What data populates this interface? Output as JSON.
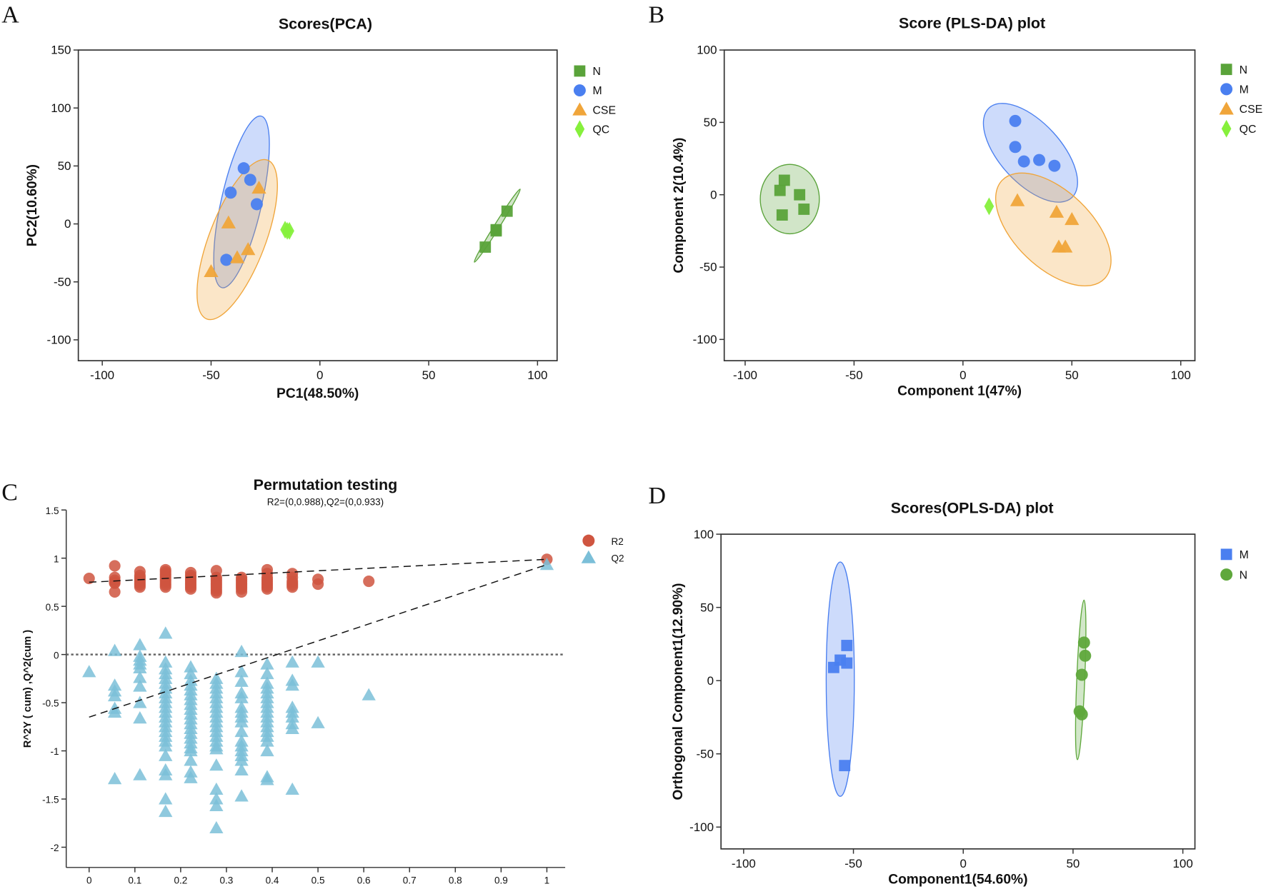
{
  "panel_letters": [
    "A",
    "B",
    "C",
    "D"
  ],
  "chart_data": [
    {
      "type": "scatter",
      "title": "Scores(PCA)",
      "xlabel": "PC1(48.50%)",
      "ylabel": "PC2(10.60%)",
      "xlim": [
        -111,
        109
      ],
      "ylim": [
        -118,
        150
      ],
      "xticks": [
        -100,
        -50,
        0,
        50,
        100
      ],
      "yticks": [
        -100,
        -50,
        0,
        50,
        100,
        150
      ],
      "legend": "right",
      "series": [
        {
          "name": "N",
          "marker": "square",
          "color": "#5aa33a",
          "points": [
            [
              76,
              -20
            ],
            [
              81,
              -5
            ],
            [
              86,
              11
            ],
            [
              81,
              -6
            ]
          ],
          "ellipse": {
            "center": [
              81.5,
              -1.5
            ],
            "axis_end": [
              92,
              30
            ],
            "minor_ratio": 0.06
          }
        },
        {
          "name": "M",
          "marker": "circle",
          "color": "#4a7ff0",
          "points": [
            [
              -35,
              48
            ],
            [
              -32,
              38
            ],
            [
              -41,
              27
            ],
            [
              -29,
              17
            ],
            [
              -43,
              -31
            ]
          ],
          "ellipse": {
            "center": [
              -36,
              19
            ],
            "axis_end": [
              -27,
              93
            ],
            "minor_ratio": 0.23
          }
        },
        {
          "name": "CSE",
          "marker": "triangle",
          "color": "#f0a53a",
          "points": [
            [
              -28,
              31
            ],
            [
              -42,
              1
            ],
            [
              -33,
              -22
            ],
            [
              -38,
              -29
            ],
            [
              -50,
              -41
            ]
          ],
          "ellipse": {
            "center": [
              -38,
              -13.5
            ],
            "axis_end": [
              -24,
              55
            ],
            "minor_ratio": 0.33
          }
        },
        {
          "name": "QC",
          "marker": "diamond",
          "color": "#86f03c",
          "points": [
            [
              -16,
              -5
            ],
            [
              -15,
              -6
            ],
            [
              -14,
              -6
            ]
          ]
        }
      ]
    },
    {
      "type": "scatter",
      "title": "Score (PLS-DA) plot",
      "xlabel": "Component 1(47%)",
      "ylabel": "Component 2(10.4%)",
      "xlim": [
        -109.6,
        106.5
      ],
      "ylim": [
        -114.7,
        100
      ],
      "xticks": [
        -100,
        -50,
        0,
        50,
        100
      ],
      "yticks": [
        -100,
        -50,
        0,
        50,
        100
      ],
      "legend": "right",
      "series": [
        {
          "name": "N",
          "marker": "square",
          "color": "#5aa33a",
          "points": [
            [
              -84,
              3
            ],
            [
              -82,
              10
            ],
            [
              -83,
              -14
            ],
            [
              -75,
              0
            ],
            [
              -73,
              -10
            ]
          ],
          "ellipse": {
            "center": [
              -79.5,
              -3
            ],
            "axis_end": [
              -79.5,
              21
            ],
            "minor_ratio": 0.85
          }
        },
        {
          "name": "M",
          "marker": "circle",
          "color": "#4a7ff0",
          "points": [
            [
              24,
              51
            ],
            [
              24,
              33
            ],
            [
              28,
              23
            ],
            [
              35,
              24
            ],
            [
              42,
              20
            ]
          ],
          "ellipse": {
            "center": [
              31,
              29
            ],
            "axis_end": [
              12,
              60
            ],
            "minor_ratio": 0.5
          }
        },
        {
          "name": "CSE",
          "marker": "triangle",
          "color": "#f0a53a",
          "points": [
            [
              25,
              -4
            ],
            [
              43,
              -12
            ],
            [
              50,
              -17
            ],
            [
              44,
              -36
            ],
            [
              47,
              -36
            ]
          ],
          "ellipse": {
            "center": [
              41.5,
              -24
            ],
            "axis_end": [
              65,
              -58
            ],
            "minor_ratio": 0.54
          }
        },
        {
          "name": "QC",
          "marker": "diamond",
          "color": "#86f03c",
          "points": [
            [
              12,
              -8
            ]
          ]
        }
      ]
    },
    {
      "type": "scatter",
      "title": "Permutation testing",
      "subtitle": "R2=(0,0.988),Q2=(0,0.933)",
      "xlabel": "",
      "ylabel": "R^2Y ( cum) ,Q^2(cum )",
      "xlim": [
        -0.05,
        1.04
      ],
      "ylim": [
        -2.21,
        1.5
      ],
      "xticks": [
        0,
        0.1,
        0.2,
        0.3,
        0.4,
        0.5,
        0.6,
        0.7,
        0.8,
        0.9,
        1
      ],
      "yticks": [
        -2,
        -1.5,
        -1,
        -0.5,
        0,
        0.5,
        1,
        1.5
      ],
      "legend": "top-right",
      "reference_line_y": 0,
      "series": [
        {
          "name": "R2",
          "marker": "circle",
          "color": "#cf5540",
          "regression": [
            [
              0,
              0.75
            ],
            [
              1,
              0.988
            ]
          ],
          "columns": [
            {
              "x": 0,
              "y": [
                0.79
              ]
            },
            {
              "x": 0.056,
              "y": [
                0.92,
                0.8,
                0.77,
                0.75,
                0.74,
                0.65
              ]
            },
            {
              "x": 0.111,
              "y": [
                0.86,
                0.82,
                0.8,
                0.78,
                0.76,
                0.74,
                0.72,
                0.7
              ]
            },
            {
              "x": 0.167,
              "y": [
                0.88,
                0.86,
                0.84,
                0.82,
                0.8,
                0.78,
                0.76,
                0.74,
                0.72,
                0.7
              ]
            },
            {
              "x": 0.222,
              "y": [
                0.85,
                0.82,
                0.8,
                0.78,
                0.76,
                0.74,
                0.72,
                0.7,
                0.68
              ]
            },
            {
              "x": 0.278,
              "y": [
                0.87,
                0.8,
                0.78,
                0.76,
                0.74,
                0.72,
                0.7,
                0.68,
                0.66,
                0.64
              ]
            },
            {
              "x": 0.333,
              "y": [
                0.8,
                0.78,
                0.76,
                0.74,
                0.72,
                0.7,
                0.68,
                0.65
              ]
            },
            {
              "x": 0.389,
              "y": [
                0.88,
                0.84,
                0.8,
                0.78,
                0.76,
                0.74,
                0.72,
                0.7,
                0.68
              ]
            },
            {
              "x": 0.444,
              "y": [
                0.84,
                0.8,
                0.76,
                0.74,
                0.72,
                0.7
              ]
            },
            {
              "x": 0.5,
              "y": [
                0.78,
                0.73
              ]
            },
            {
              "x": 0.611,
              "y": [
                0.76
              ]
            },
            {
              "x": 1,
              "y": [
                0.988
              ]
            }
          ]
        },
        {
          "name": "Q2",
          "marker": "triangle",
          "color": "#7bbfd8",
          "regression": [
            [
              0,
              -0.65
            ],
            [
              1,
              0.933
            ]
          ],
          "columns": [
            {
              "x": 0,
              "y": [
                -0.18
              ]
            },
            {
              "x": 0.056,
              "y": [
                0.04,
                -0.32,
                -0.38,
                -0.43,
                -0.56,
                -0.6,
                -1.29
              ]
            },
            {
              "x": 0.111,
              "y": [
                0.1,
                -0.02,
                -0.06,
                -0.1,
                -0.14,
                -0.24,
                -0.33,
                -0.5,
                -0.66,
                -1.25
              ]
            },
            {
              "x": 0.167,
              "y": [
                0.22,
                -0.08,
                -0.15,
                -0.2,
                -0.25,
                -0.3,
                -0.35,
                -0.4,
                -0.45,
                -0.5,
                -0.55,
                -0.6,
                -0.65,
                -0.7,
                -0.75,
                -0.8,
                -0.85,
                -0.9,
                -0.95,
                -1.05,
                -1.2,
                -1.25,
                -1.5,
                -1.63
              ]
            },
            {
              "x": 0.222,
              "y": [
                -0.13,
                -0.2,
                -0.27,
                -0.32,
                -0.37,
                -0.42,
                -0.47,
                -0.52,
                -0.57,
                -0.62,
                -0.67,
                -0.72,
                -0.77,
                -0.82,
                -0.87,
                -0.92,
                -0.97,
                -1.0,
                -1.1,
                -1.22,
                -1.28
              ]
            },
            {
              "x": 0.278,
              "y": [
                -0.25,
                -0.3,
                -0.35,
                -0.4,
                -0.45,
                -0.5,
                -0.55,
                -0.6,
                -0.65,
                -0.7,
                -0.75,
                -0.8,
                -0.85,
                -0.9,
                -0.95,
                -0.98,
                -1.15,
                -1.4,
                -1.5,
                -1.57,
                -1.8
              ]
            },
            {
              "x": 0.333,
              "y": [
                0.03,
                -0.18,
                -0.28,
                -0.4,
                -0.45,
                -0.55,
                -0.6,
                -0.65,
                -0.7,
                -0.8,
                -0.9,
                -0.95,
                -1.0,
                -1.05,
                -1.1,
                -1.2,
                -1.47
              ]
            },
            {
              "x": 0.389,
              "y": [
                -0.1,
                -0.2,
                -0.3,
                -0.35,
                -0.4,
                -0.45,
                -0.5,
                -0.55,
                -0.6,
                -0.65,
                -0.7,
                -0.75,
                -0.8,
                -0.85,
                -0.9,
                -1.0,
                -1.27,
                -1.3
              ]
            },
            {
              "x": 0.444,
              "y": [
                -0.08,
                -0.27,
                -0.32,
                -0.55,
                -0.6,
                -0.65,
                -0.72,
                -0.77,
                -1.4
              ]
            },
            {
              "x": 0.5,
              "y": [
                -0.08,
                -0.71
              ]
            },
            {
              "x": 0.611,
              "y": [
                -0.42
              ]
            },
            {
              "x": 1,
              "y": [
                0.933
              ]
            }
          ]
        }
      ]
    },
    {
      "type": "scatter",
      "title": "Scores(OPLS-DA) plot",
      "xlabel": "Component1(54.60%)",
      "ylabel": "Orthogonal Component1(12.90%)",
      "xlim": [
        -110.3,
        105.5
      ],
      "ylim": [
        -114.9,
        100
      ],
      "xticks": [
        -100,
        -50,
        0,
        50,
        100
      ],
      "yticks": [
        -100,
        -50,
        0,
        50,
        100
      ],
      "legend": "right",
      "series": [
        {
          "name": "M",
          "marker": "square",
          "color": "#4a7ff0",
          "points": [
            [
              -59,
              9
            ],
            [
              -56,
              14
            ],
            [
              -53,
              24
            ],
            [
              -53,
              12
            ],
            [
              -54,
              -58
            ]
          ],
          "ellipse": {
            "center": [
              -56,
              1
            ],
            "axis_end": [
              -56,
              81
            ],
            "minor_ratio": 0.12
          }
        },
        {
          "name": "N",
          "marker": "circle",
          "color": "#5fa83c",
          "points": [
            [
              55,
              26
            ],
            [
              55.5,
              17
            ],
            [
              54,
              4
            ],
            [
              53,
              -21
            ],
            [
              54,
              -23
            ]
          ],
          "ellipse": {
            "center": [
              53.5,
              0.5
            ],
            "axis_end": [
              55,
              55
            ],
            "minor_ratio": 0.05
          }
        }
      ]
    }
  ]
}
